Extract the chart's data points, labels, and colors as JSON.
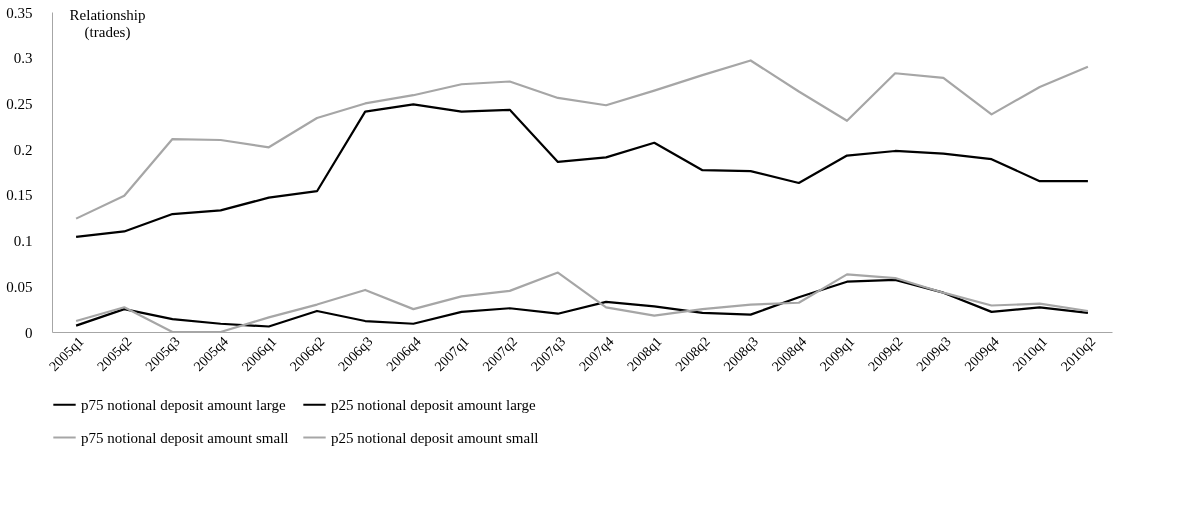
{
  "chart_data": {
    "type": "line",
    "ylabel": "Relationship\n(trades)",
    "categories": [
      "2005q1",
      "2005q2",
      "2005q3",
      "2005q4",
      "2006q1",
      "2006q2",
      "2006q3",
      "2006q4",
      "2007q1",
      "2007q2",
      "2007q3",
      "2007q4",
      "2008q1",
      "2008q2",
      "2008q3",
      "2008q4",
      "2009q1",
      "2009q2",
      "2009q3",
      "2009q4",
      "2010q1",
      "2010q2"
    ],
    "series": [
      {
        "name": "p75 notional deposit amount large",
        "color": "#000000",
        "values": [
          0.104,
          0.11,
          0.129,
          0.133,
          0.147,
          0.154,
          0.241,
          0.249,
          0.241,
          0.243,
          0.186,
          0.191,
          0.207,
          0.177,
          0.176,
          0.163,
          0.193,
          0.198,
          0.195,
          0.189,
          0.165,
          0.165
        ]
      },
      {
        "name": "p25 notional deposit amount large",
        "color": "#000000",
        "values": [
          0.007,
          0.025,
          0.014,
          0.009,
          0.006,
          0.023,
          0.012,
          0.009,
          0.022,
          0.026,
          0.02,
          0.033,
          0.028,
          0.021,
          0.019,
          0.038,
          0.055,
          0.057,
          0.043,
          0.022,
          0.027,
          0.021
        ]
      },
      {
        "name": "p75 notional deposit amount small",
        "color": "#a6a6a6",
        "values": [
          0.124,
          0.149,
          0.211,
          0.21,
          0.202,
          0.234,
          0.25,
          0.259,
          0.271,
          0.274,
          0.256,
          0.248,
          0.264,
          0.281,
          0.297,
          0.263,
          0.231,
          0.283,
          0.278,
          0.238,
          0.268,
          0.29
        ]
      },
      {
        "name": "p25 notional deposit amount small",
        "color": "#a6a6a6",
        "values": [
          0.012,
          0.027,
          0,
          0,
          0.016,
          0.03,
          0.046,
          0.025,
          0.039,
          0.045,
          0.065,
          0.027,
          0.018,
          0.025,
          0.03,
          0.032,
          0.063,
          0.059,
          0.043,
          0.029,
          0.031,
          0.023
        ]
      }
    ],
    "ylim": [
      0,
      0.35
    ],
    "yticks": [
      0,
      0.05,
      0.1,
      0.15,
      0.2,
      0.25,
      0.3,
      0.35
    ],
    "grid": false,
    "legend": "bottom",
    "marker": "none",
    "line_style": "solid"
  }
}
